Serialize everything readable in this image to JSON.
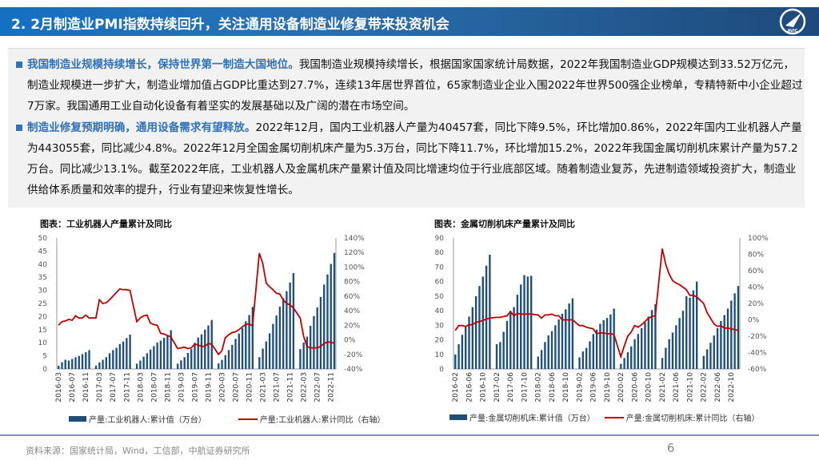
{
  "header": {
    "title": "2. 2月制造业PMI指数持续回升，关注通用设备制造业修复带来投资机会",
    "logo_text": "AVIC"
  },
  "paragraphs": [
    {
      "highlight": "我国制造业规模持续增长，保持世界第一制造大国地位。",
      "body": "我国制造业规模持续增长，根据国家国家统计局数据，2022年我国制造业GDP规模达到33.52万亿元，制造业规模进一步扩大，制造业增加值占GDP比重达到27.7%，连续13年居世界首位，65家制造业企业入围2022年世界500强企业榜单，专精特新中小企业超过7万家。我国通用工业自动化设备有着坚实的发展基础以及广阔的潜在市场空间。"
    },
    {
      "highlight": "制造业修复预期明确，通用设备需求有望释放。",
      "body": "2022年12月，国内工业机器人产量为40457套，同比下降9.5%，环比增加0.86%，2022年国内工业机器人产量为443055套，同比减少4.8%。2022年12月全国金属切削机床产量为5.3万台，同比下降11.7%，环比增加15.2%，2022年我国金属切削机床累计产量为57.2万台。同比减少13.1%。截至2022年底，工业机器人及金属机床产量累计值及同比增速均位于行业底部区域。随着制造业复苏，先进制造领域投资扩大，制造业供给体系质量和效率的提升，行业有望迎来恢复性增长。"
    }
  ],
  "chart_data": [
    {
      "type": "bar+line",
      "title": "图表：工业机器人产量累计及同比",
      "start_months": [
        "2016-03",
        "2017-02",
        "2018-02",
        "2019-02",
        "2020-02",
        "2021-02",
        "2022-02"
      ],
      "bars": [
        [
          1.2,
          2.6,
          3.5,
          3.2,
          3.8,
          4.5,
          5.0,
          5.7,
          6.4,
          7.2
        ],
        [
          1.3,
          2.5,
          3.5,
          4.5,
          6.0,
          7.2,
          8.1,
          9.5,
          10.5,
          11.8,
          13.1
        ],
        [
          2.0,
          3.2,
          4.7,
          6.0,
          7.4,
          8.7,
          10.1,
          10.8,
          11.9,
          12.8,
          14.8
        ],
        [
          2.0,
          3.3,
          4.5,
          6.1,
          7.6,
          10.0,
          12.0,
          13.2,
          15.0,
          16.6,
          18.7
        ],
        [
          2.1,
          3.5,
          5.3,
          7.2,
          9.2,
          11.5,
          13.5,
          15.6,
          18.2,
          20.6,
          23.7
        ],
        [
          4.5,
          7.8,
          10.5,
          13.6,
          17.2,
          20.4,
          23.8,
          27.0,
          29.7,
          33.0,
          36.6
        ],
        [
          7.6,
          10.1,
          12.3,
          16.5,
          20.2,
          23.5,
          27.5,
          32.2,
          36.1,
          40.1,
          44.3
        ]
      ],
      "line": [
        [
          20,
          25,
          26,
          28,
          27,
          33,
          30,
          30,
          34,
          30
        ],
        [
          30,
          55,
          50,
          51,
          55,
          60,
          65,
          70,
          69,
          69,
          68
        ],
        [
          25,
          30,
          33,
          34,
          23,
          21,
          20,
          9,
          8,
          6,
          4
        ],
        [
          -12,
          -11,
          -10,
          -12,
          -11,
          -6,
          -7,
          -9,
          -9,
          -5,
          -6
        ],
        [
          -20,
          -15,
          3,
          7,
          10,
          11,
          14,
          18,
          21,
          22,
          19
        ],
        [
          119,
          105,
          78,
          73,
          69,
          64,
          63,
          55,
          50,
          48,
          44
        ],
        [
          30,
          5,
          -9,
          -11,
          -11,
          -11,
          -9,
          -5,
          -3,
          -3,
          -5
        ]
      ],
      "ylim": [
        0,
        50
      ],
      "yticks": [
        "50",
        "45",
        "40",
        "35",
        "30",
        "25",
        "20",
        "15",
        "10",
        "5",
        "0"
      ],
      "y2lim": [
        -40,
        140
      ],
      "y2ticks": [
        "140%",
        "120%",
        "100%",
        "80%",
        "60%",
        "40%",
        "20%",
        "0%",
        "-20%",
        "-40%"
      ],
      "xticks": [
        "2016-03",
        "2016-07",
        "2016-11",
        "2017-03",
        "2017-07",
        "2017-11",
        "2018-03",
        "2018-07",
        "2018-11",
        "2019-03",
        "2019-07",
        "2019-11",
        "2020-03",
        "2020-07",
        "2020-11",
        "2021-03",
        "2021-07",
        "2021-11",
        "2022-03",
        "2022-07",
        "2022-11"
      ],
      "legend": [
        "产量:工业机器人:累计值（万台）",
        "产量:工业机器人:累计同比（右轴）"
      ],
      "colors": {
        "bar": "#1f4e79",
        "line": "#c00000"
      }
    },
    {
      "type": "bar+line",
      "title": "图表：金属切削机床产量累计及同比",
      "start_months": [
        "2016-02",
        "2017-02",
        "2018-02",
        "2019-02",
        "2020-02",
        "2021-02",
        "2022-02"
      ],
      "bars": [
        [
          10,
          17,
          23.5,
          29,
          36,
          42.5,
          50,
          57,
          63.5,
          71,
          78.5
        ],
        [
          17,
          18.5,
          25.5,
          33,
          40,
          42.5,
          51,
          58,
          64.5,
          63.5,
          64
        ],
        [
          8.5,
          13,
          18.5,
          23,
          26,
          30,
          34,
          38,
          41,
          45,
          48.5
        ],
        [
          8,
          12,
          14.5,
          19,
          24,
          27,
          31,
          33.5,
          35,
          37.5,
          41.5
        ],
        [
          3.5,
          7.5,
          11.5,
          15.5,
          20.5,
          24,
          28,
          32,
          36,
          40.5,
          44.5
        ],
        [
          7.5,
          14.5,
          20.5,
          25,
          30,
          35,
          40,
          50,
          49,
          54,
          60
        ],
        [
          9,
          13.5,
          18,
          23,
          28,
          33,
          37,
          41.5,
          47,
          52,
          57
        ]
      ],
      "line": [
        [
          -13,
          -7,
          -7,
          -8,
          -6,
          -6,
          -3,
          -2,
          -1,
          1,
          2
        ],
        [
          3,
          3,
          4,
          5,
          10,
          5,
          8,
          7,
          7,
          7,
          7
        ],
        [
          6,
          2,
          6,
          6,
          7,
          5,
          5,
          0,
          0,
          0,
          0
        ],
        [
          -7,
          -7,
          -9,
          -10,
          -11,
          -17,
          -16,
          -16,
          -17,
          -17,
          -18
        ],
        [
          -45,
          -32,
          -20,
          -15,
          -7,
          -9,
          -6,
          -2,
          2,
          4,
          5
        ],
        [
          87,
          68,
          56,
          48,
          45,
          43,
          40,
          37,
          30,
          30,
          28
        ],
        [
          20,
          9,
          2,
          -5,
          -8,
          -7,
          -10,
          -10,
          -11,
          -12,
          -13
        ]
      ],
      "ylim": [
        0,
        90
      ],
      "yticks": [
        "90",
        "80",
        "70",
        "60",
        "50",
        "40",
        "30",
        "20",
        "10",
        "0"
      ],
      "y2lim": [
        -60,
        100
      ],
      "y2ticks": [
        "100%",
        "80%",
        "60%",
        "40%",
        "20%",
        "0%",
        "-20%",
        "-40%",
        "-60%"
      ],
      "xticks": [
        "2016-02",
        "2016-06",
        "2016-10",
        "2017-02",
        "2017-06",
        "2017-10",
        "2018-02",
        "2018-06",
        "2018-10",
        "2019-02",
        "2019-06",
        "2019-10",
        "2020-02",
        "2020-06",
        "2020-10",
        "2021-02",
        "2021-06",
        "2021-10",
        "2022-02",
        "2022-06",
        "2022-10"
      ],
      "legend": [
        "产量:金属切削机床:累计值（万台）",
        "产量:金属切削机床:累计同比（右轴）"
      ],
      "colors": {
        "bar": "#1f4e79",
        "line": "#c00000"
      }
    }
  ],
  "footer": {
    "source": "资料来源：国家统计局，Wind，工信部，中航证券研究所",
    "page": "6"
  }
}
